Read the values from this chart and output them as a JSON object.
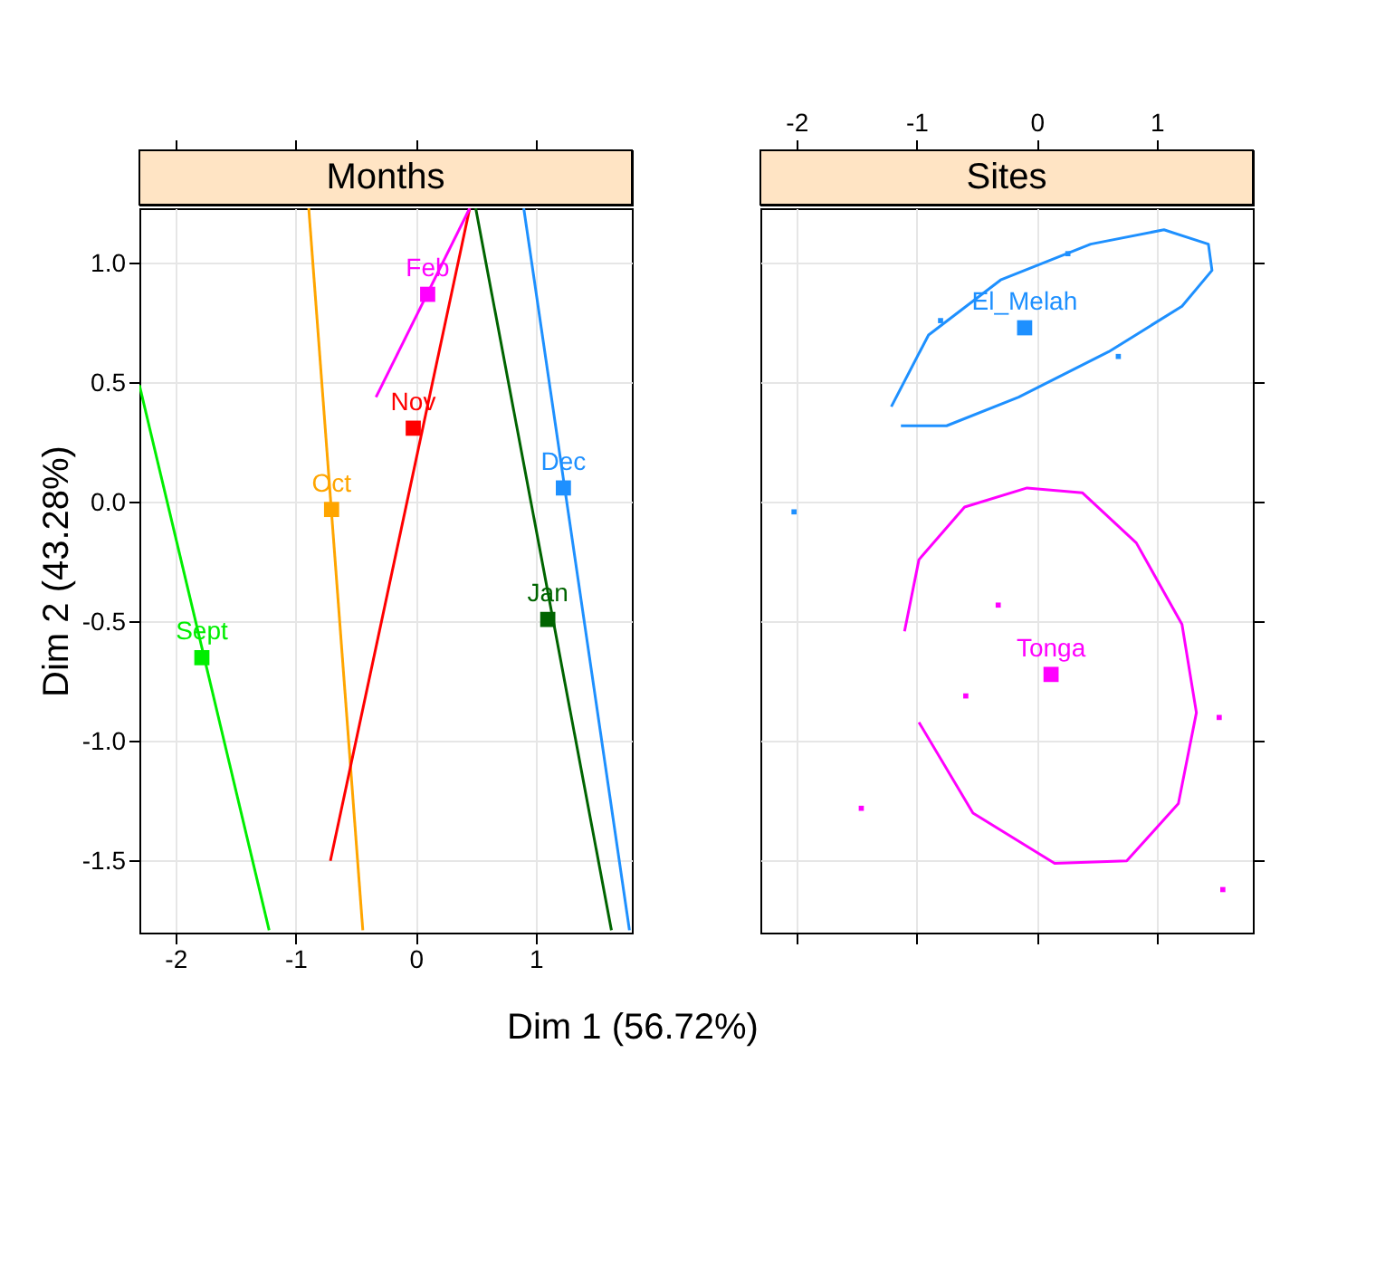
{
  "chart_data": [
    {
      "type": "scatter",
      "title": "Months",
      "xlabel": "Dim 1 (56.72%)",
      "ylabel": "Dim 2 (43.28%)",
      "xlim": [
        -2.3,
        1.8
      ],
      "ylim": [
        -1.8,
        1.23
      ],
      "xticks": [
        -2,
        -1,
        0,
        1
      ],
      "yticks": [
        {
          "value": -1.5,
          "label": "-1.5"
        },
        {
          "value": -1,
          "label": "-1.0"
        },
        {
          "value": -0.5,
          "label": "-0.5"
        },
        {
          "value": 0,
          "label": "0.0"
        },
        {
          "value": 0.5,
          "label": "0.5"
        },
        {
          "value": 1,
          "label": "1.0"
        }
      ],
      "grid": true,
      "marker": "square",
      "series": [
        {
          "type": "line",
          "marker": "none",
          "color": "#00ee00",
          "x": [
            -2.3,
            -1.22
          ],
          "values": [
            0.49,
            -1.79
          ]
        },
        {
          "type": "line",
          "marker": "none",
          "color": "#ffa500",
          "x": [
            -0.89,
            -0.44
          ],
          "values": [
            1.23,
            -1.79
          ]
        },
        {
          "type": "line",
          "marker": "none",
          "color": "#ff0000",
          "x": [
            -0.71,
            0.45
          ],
          "values": [
            -1.5,
            1.23
          ]
        },
        {
          "type": "line",
          "marker": "none",
          "color": "#ff00ff",
          "x": [
            -0.33,
            0.45
          ],
          "values": [
            0.44,
            1.23
          ]
        },
        {
          "type": "line",
          "marker": "none",
          "color": "#006400",
          "x": [
            0.5,
            1.63
          ],
          "values": [
            1.23,
            -1.79
          ]
        },
        {
          "type": "line",
          "marker": "none",
          "color": "#1e90ff",
          "x": [
            0.9,
            1.78
          ],
          "values": [
            1.23,
            -1.79
          ]
        },
        {
          "name": "Sept",
          "color": "#00ee00",
          "x": [
            -1.78
          ],
          "values": [
            -0.65
          ]
        },
        {
          "name": "Oct",
          "color": "#ffa500",
          "x": [
            -0.7
          ],
          "values": [
            -0.03
          ]
        },
        {
          "name": "Nov",
          "color": "#ff0000",
          "x": [
            -0.02
          ],
          "values": [
            0.31
          ]
        },
        {
          "name": "Feb",
          "color": "#ff00ff",
          "x": [
            0.1
          ],
          "values": [
            0.87
          ]
        },
        {
          "name": "Jan",
          "color": "#006400",
          "x": [
            1.1
          ],
          "values": [
            -0.49
          ]
        },
        {
          "name": "Dec",
          "color": "#1e90ff",
          "x": [
            1.23
          ],
          "values": [
            0.06
          ]
        }
      ]
    },
    {
      "type": "scatter",
      "title": "Sites",
      "xlim": [
        -2.3,
        1.8
      ],
      "ylim": [
        -1.8,
        1.23
      ],
      "xticks": [
        -2,
        -1,
        0,
        1
      ],
      "yticks": [
        {
          "value": -1.5,
          "label": null
        },
        {
          "value": -1,
          "label": null
        },
        {
          "value": -0.5,
          "label": null
        },
        {
          "value": 0,
          "label": null
        },
        {
          "value": 0.5,
          "label": null
        },
        {
          "value": 1,
          "label": null
        }
      ],
      "tick_labels": "x",
      "grid": true,
      "marker": "square",
      "series": [
        {
          "type": "line",
          "marker": "none",
          "color": "#1e90ff",
          "x": [
            -1.21,
            -0.9,
            -0.3,
            0.45,
            1.06,
            1.43,
            1.46,
            1.21,
            0.6,
            -0.15,
            -0.75,
            -1.13
          ],
          "values": [
            0.4,
            0.7,
            0.93,
            1.08,
            1.14,
            1.08,
            0.97,
            0.82,
            0.63,
            0.44,
            0.32,
            0.32
          ]
        },
        {
          "type": "line",
          "marker": "none",
          "color": "#ff00ff",
          "x": [
            -1.1,
            -0.98,
            -0.6,
            -0.08,
            0.38,
            0.83,
            1.21,
            1.33,
            1.18,
            0.75,
            0.15,
            -0.53,
            -0.98
          ],
          "values": [
            -0.54,
            -0.24,
            -0.02,
            0.06,
            0.04,
            -0.17,
            -0.51,
            -0.88,
            -1.26,
            -1.5,
            -1.51,
            -1.3,
            -0.92
          ]
        },
        {
          "color": "#1e90ff",
          "x": [
            -0.8,
            0.26,
            0.68,
            -2.02
          ],
          "values": [
            0.76,
            1.04,
            0.61,
            -0.04
          ]
        },
        {
          "color": "#ff00ff",
          "x": [
            -0.32,
            -0.59,
            -1.46,
            1.52,
            1.55
          ],
          "values": [
            -0.43,
            -0.81,
            -1.28,
            -0.9,
            -1.62
          ]
        },
        {
          "name": "El_Melah",
          "color": "#1e90ff",
          "x": [
            -0.1
          ],
          "values": [
            0.73
          ]
        },
        {
          "name": "Tonga",
          "color": "#ff00ff",
          "x": [
            0.12
          ],
          "values": [
            -0.72
          ]
        }
      ]
    }
  ]
}
